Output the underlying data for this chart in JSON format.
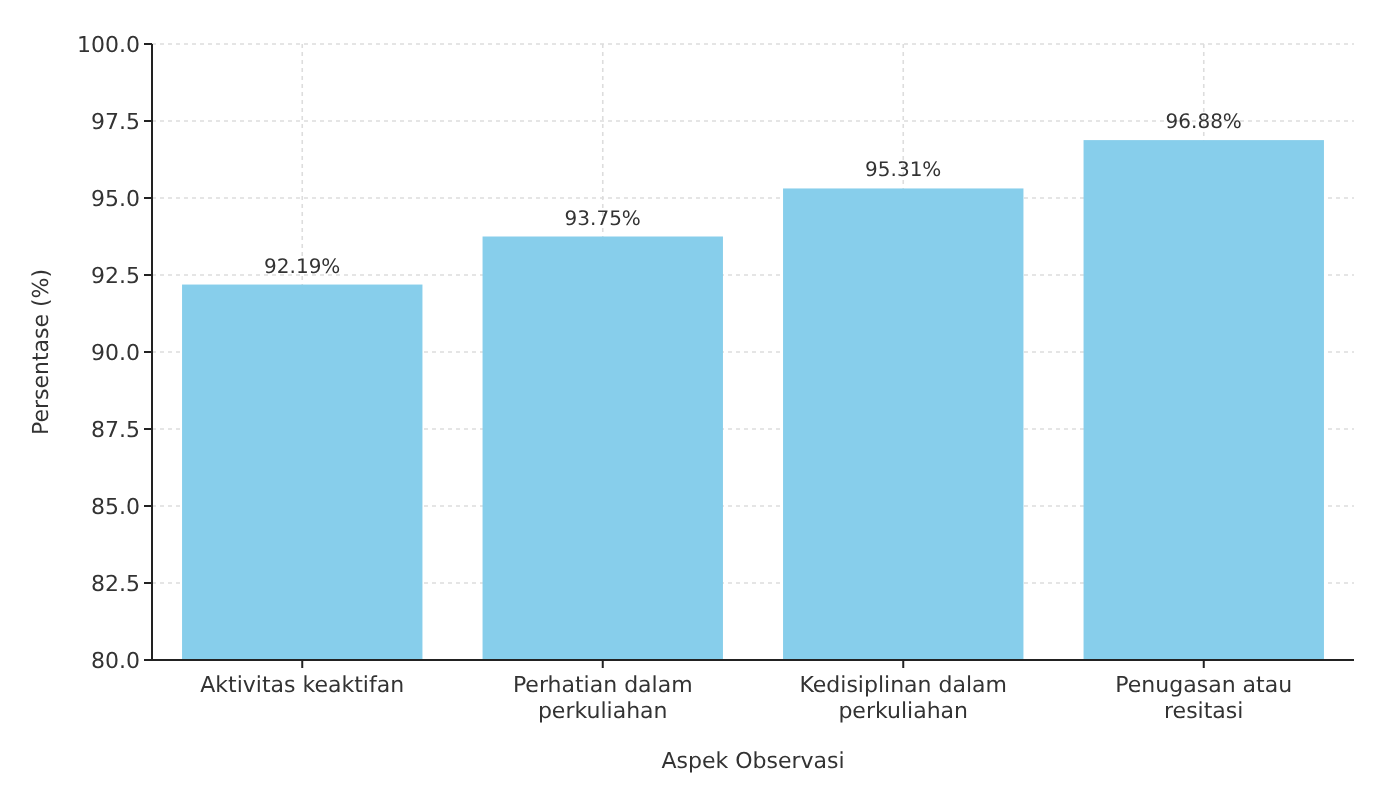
{
  "chart_data": {
    "type": "bar",
    "xlabel": "Aspek Observasi",
    "ylabel": "Persentase (%)",
    "categories": [
      "Aktivitas keaktifan",
      "Perhatian dalam perkuliahan",
      "Kedisiplinan dalam perkuliahan",
      "Penugasan atau resitasi"
    ],
    "values": [
      92.19,
      93.75,
      95.31,
      96.88
    ],
    "color": "#87ceeb",
    "value_labels": [
      "92.19%",
      "93.75%",
      "95.31%",
      "96.88%"
    ],
    "ylim": [
      80,
      100
    ],
    "yticks": [
      {
        "value": 80,
        "label": "80.0"
      },
      {
        "value": 82.5,
        "label": "82.5"
      },
      {
        "value": 85,
        "label": "85.0"
      },
      {
        "value": 87.5,
        "label": "87.5"
      },
      {
        "value": 90,
        "label": "90.0"
      },
      {
        "value": 92.5,
        "label": "92.5"
      },
      {
        "value": 95,
        "label": "95.0"
      },
      {
        "value": 97.5,
        "label": "97.5"
      },
      {
        "value": 100,
        "label": "100.0"
      }
    ],
    "grid": true
  }
}
